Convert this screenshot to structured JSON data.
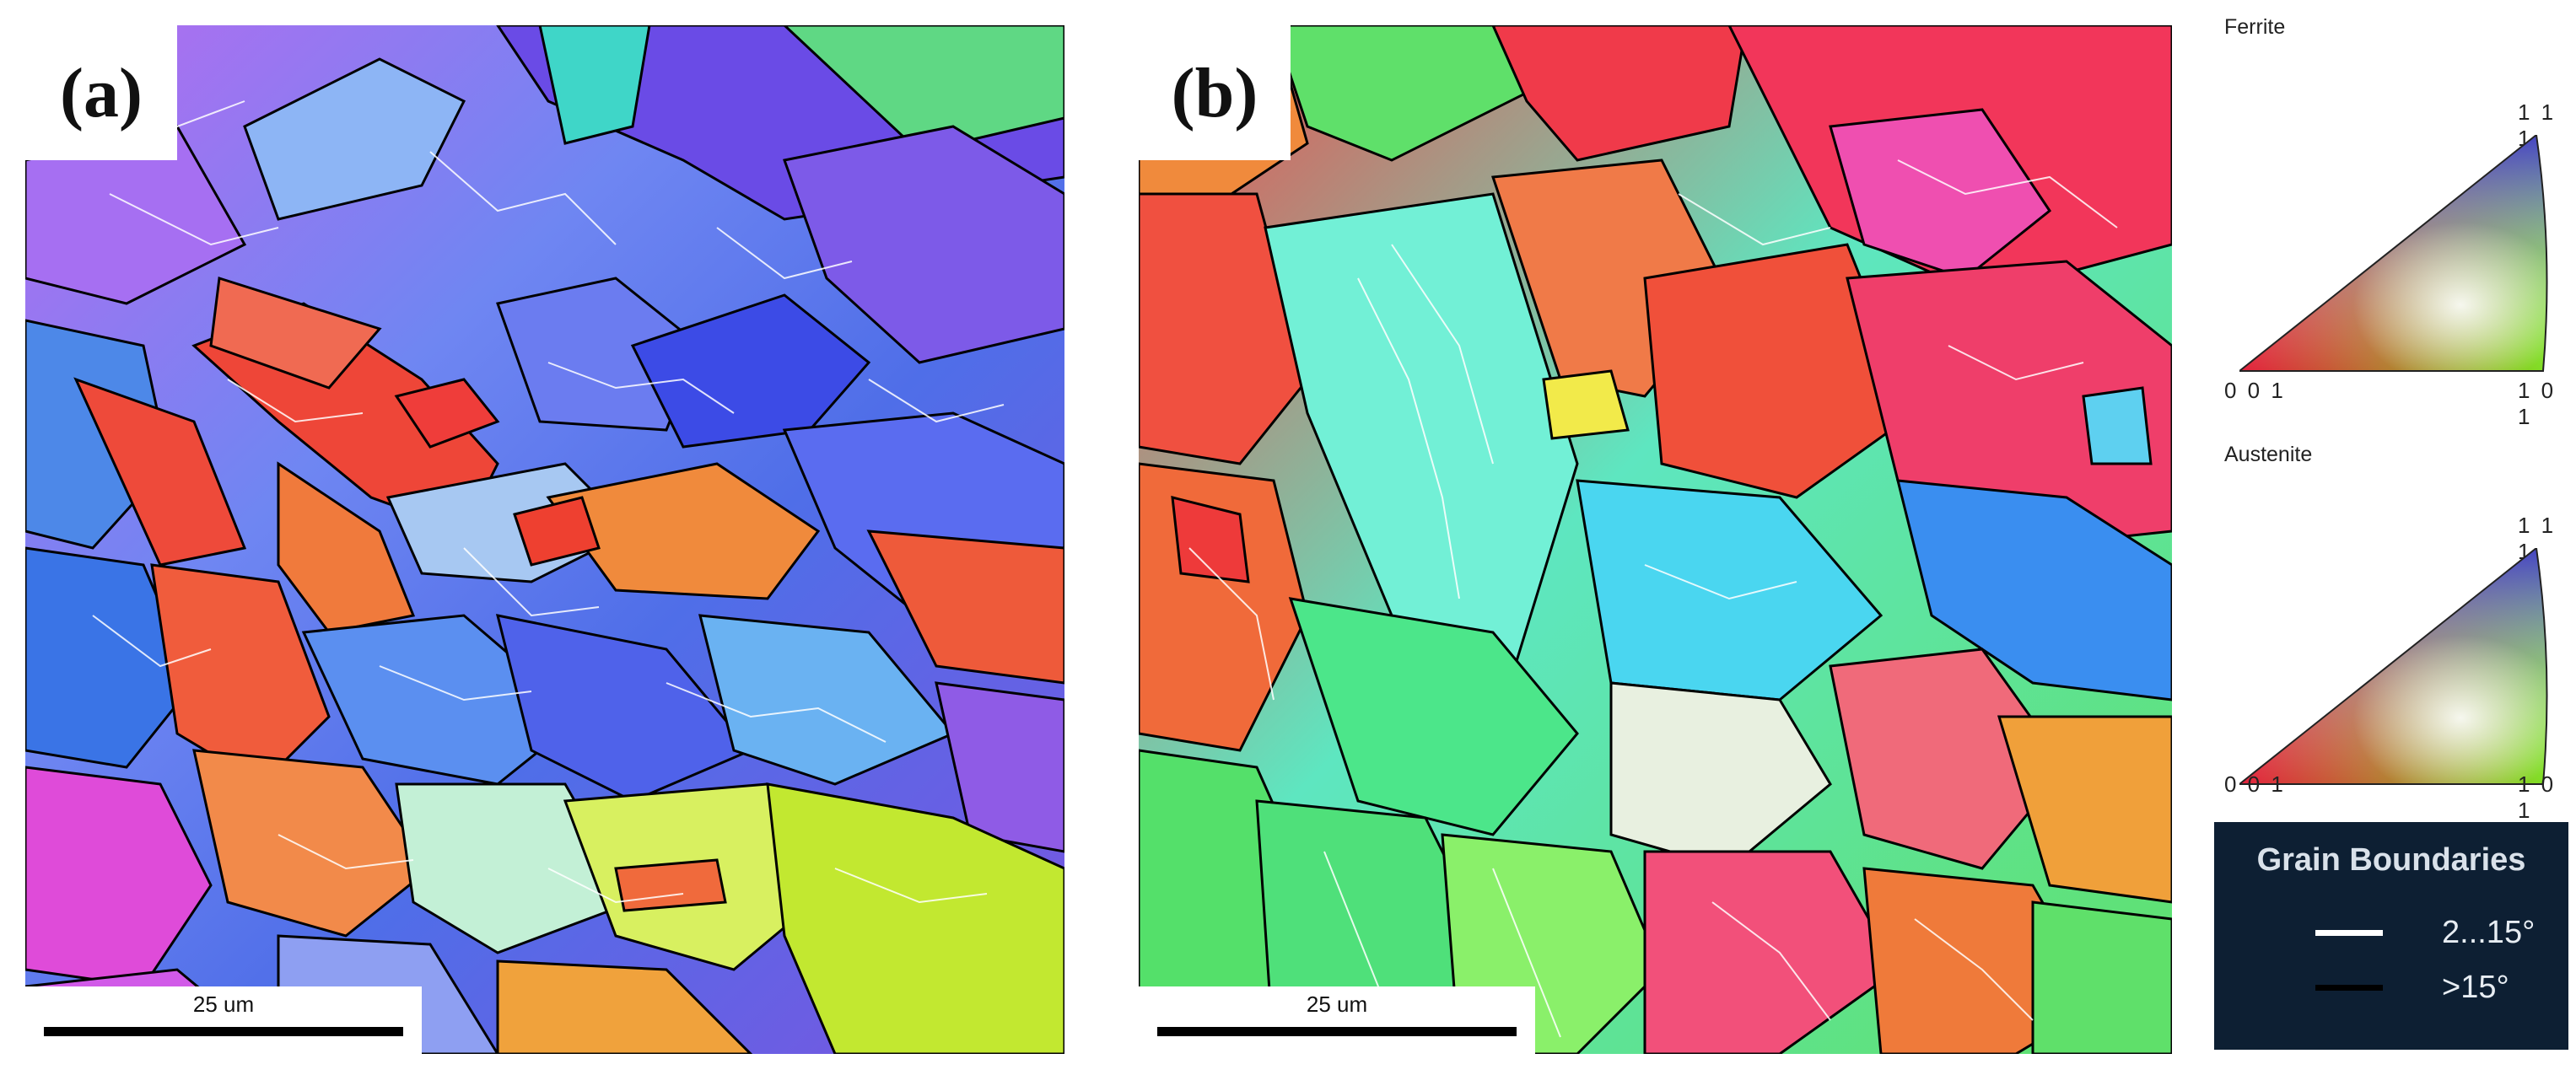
{
  "panels": {
    "a": {
      "label": "(a)",
      "scale_bar": "25 um"
    },
    "b": {
      "label": "(b)",
      "scale_bar": "25 um"
    }
  },
  "legend": {
    "ferrite": {
      "title": "Ferrite",
      "corner_111": "1 1 1",
      "corner_001": "0 0 1",
      "corner_101": "1 0 1"
    },
    "austenite": {
      "title": "Austenite",
      "corner_111": "1 1 1",
      "corner_001": "0 0 1",
      "corner_101": "1 0 1"
    },
    "grain_boundaries": {
      "title": "Grain Boundaries",
      "low_angle": {
        "label": "2...15°",
        "color": "#ffffff"
      },
      "high_angle": {
        "label": ">15°",
        "color": "#000000"
      }
    }
  },
  "colors": {
    "ipf_001": "#e5213d",
    "ipf_101": "#7ee022",
    "ipf_111": "#3a2ae0",
    "legend_bg": "#0d1f33"
  }
}
